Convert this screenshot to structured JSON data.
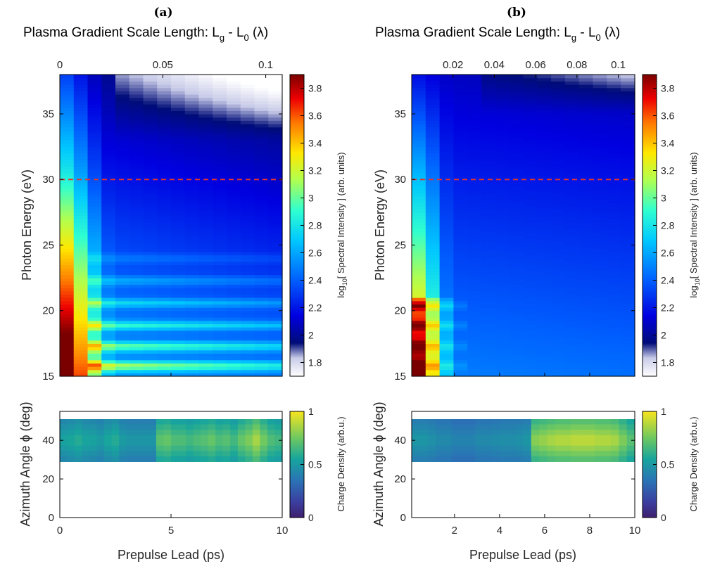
{
  "panels": [
    {
      "label": "(a)",
      "top_title": "Plasma Gradient Scale Length: L",
      "top_sub_g": "g",
      "top_mid": " - L",
      "top_sub_0": "0",
      "top_end": " (λ)"
    },
    {
      "label": "(b)",
      "top_title": "Plasma Gradient Scale Length: L",
      "top_sub_g": "g",
      "top_mid": " - L",
      "top_sub_0": "0",
      "top_end": " (λ)"
    }
  ],
  "labels": {
    "y_top": "Photon Energy (eV)",
    "y_bottom": "Azimuth Angle ϕ (deg)",
    "x_bottom": "Prepulse Lead (ps)",
    "cb_top_pre": "log",
    "cb_top_sub": "10",
    "cb_top_post": "[ Spectral Intensity ] (arb. units)",
    "cb_bottom": "Charge Density (arb.u.)"
  },
  "chart_data": [
    {
      "type": "heatmap",
      "panel": "(a) top",
      "x_range": [
        0,
        10
      ],
      "x_label": "",
      "top_axis_label": "Plasma Gradient Scale Length: Lg - L0 (λ)",
      "top_axis_ticks": [
        "0",
        "0.05",
        "0.1"
      ],
      "top_axis_values": [
        0,
        0.05,
        0.1
      ],
      "top_axis_range": [
        0,
        0.108
      ],
      "y_label": "Photon Energy (eV)",
      "y_range": [
        15,
        38
      ],
      "y_ticks": [
        "15",
        "20",
        "25",
        "30",
        "35"
      ],
      "reference_line": {
        "y": 30,
        "style": "dashed",
        "color": "#e8332d"
      },
      "colorbar": {
        "label": "log10[ Spectral Intensity ] (arb. units)",
        "range": [
          1.7,
          3.9
        ],
        "ticks": [
          "1.8",
          "2",
          "2.2",
          "2.4",
          "2.6",
          "2.8",
          "3",
          "3.2",
          "3.4",
          "3.6",
          "3.8"
        ],
        "colormap": "jet-like"
      },
      "harmonic_lines_eV": [
        15.8,
        17.3,
        18.9,
        20.6,
        22.3,
        24.0
      ],
      "columns": 16
    },
    {
      "type": "heatmap",
      "panel": "(b) top",
      "x_range": [
        0,
        10
      ],
      "top_axis_label": "Plasma Gradient Scale Length: Lg - L0 (λ)",
      "top_axis_ticks": [
        "0.02",
        "0.04",
        "0.06",
        "0.08",
        "0.1"
      ],
      "top_axis_values": [
        0.02,
        0.04,
        0.06,
        0.08,
        0.1
      ],
      "top_axis_range": [
        0,
        0.108
      ],
      "y_label": "Photon Energy (eV)",
      "y_range": [
        15,
        38
      ],
      "y_ticks": [
        "15",
        "20",
        "25",
        "30",
        "35"
      ],
      "reference_line": {
        "y": 30,
        "style": "dashed",
        "color": "#e8332d"
      },
      "colorbar": {
        "label": "log10[ Spectral Intensity ] (arb. units)",
        "range": [
          1.7,
          3.9
        ],
        "ticks": [
          "1.8",
          "2",
          "2.2",
          "2.4",
          "2.6",
          "2.8",
          "3",
          "3.2",
          "3.4",
          "3.6",
          "3.8"
        ],
        "colormap": "jet-like"
      },
      "columns": 16
    },
    {
      "type": "heatmap",
      "panel": "(a) bottom",
      "x_label": "Prepulse Lead (ps)",
      "x_range": [
        0,
        10
      ],
      "x_ticks": [
        "0",
        "5",
        "10"
      ],
      "y_label": "Azimuth Angle ϕ (deg)",
      "y_range": [
        0,
        55
      ],
      "y_ticks": [
        "0",
        "20",
        "40"
      ],
      "band_deg": [
        29,
        51
      ],
      "colorbar": {
        "label": "Charge Density (arb.u.)",
        "range": [
          0,
          1
        ],
        "ticks": [
          "0",
          "0.5",
          "1"
        ],
        "colormap": "parula"
      },
      "density_by_column": [
        0.55,
        0.57,
        0.6,
        0.56,
        0.55,
        0.52,
        0.57,
        0.6,
        0.52,
        0.5,
        0.5,
        0.5,
        0.5,
        0.73,
        0.75,
        0.7,
        0.7,
        0.67,
        0.7,
        0.72,
        0.75,
        0.7,
        0.72,
        0.67,
        0.75,
        0.8,
        0.88,
        0.78,
        0.7,
        0.67
      ]
    },
    {
      "type": "heatmap",
      "panel": "(b) bottom",
      "x_label": "Prepulse Lead (ps)",
      "x_range": [
        0.1,
        10
      ],
      "x_ticks": [
        "2",
        "4",
        "6",
        "8",
        "10"
      ],
      "y_label": "Azimuth Angle ϕ (deg)",
      "y_range": [
        0,
        55
      ],
      "y_ticks": [
        "0",
        "20",
        "40"
      ],
      "band_deg": [
        29,
        51
      ],
      "colorbar": {
        "label": "Charge Density (arb.u.)",
        "range": [
          0,
          1
        ],
        "ticks": [
          "0",
          "0.5",
          "1"
        ],
        "colormap": "parula"
      },
      "density_by_column": [
        0.5,
        0.5,
        0.48,
        0.45,
        0.45,
        0.42,
        0.42,
        0.42,
        0.45,
        0.45,
        0.46,
        0.47,
        0.47,
        0.48,
        0.5,
        0.82,
        0.85,
        0.88,
        0.9,
        0.9,
        0.92,
        0.92,
        0.92,
        0.9,
        0.9,
        0.88,
        0.8,
        0.72
      ]
    }
  ],
  "colors": {
    "dash_line": "#e8332d",
    "frame": "#000000"
  }
}
